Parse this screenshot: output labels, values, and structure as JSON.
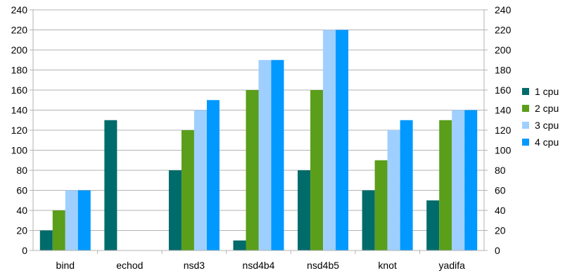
{
  "chart_data": {
    "type": "bar",
    "categories": [
      "bind",
      "echod",
      "nsd3",
      "nsd4b4",
      "nsd4b5",
      "knot",
      "yadifa"
    ],
    "series": [
      {
        "name": "1 cpu",
        "color": "#006b6b",
        "values": [
          20,
          130,
          80,
          10,
          80,
          60,
          50
        ]
      },
      {
        "name": "2 cpu",
        "color": "#5a9e1a",
        "values": [
          40,
          0,
          120,
          160,
          160,
          90,
          130
        ]
      },
      {
        "name": "3 cpu",
        "color": "#9fcfff",
        "values": [
          60,
          0,
          140,
          190,
          220,
          120,
          140
        ]
      },
      {
        "name": "4 cpu",
        "color": "#0099ff",
        "values": [
          60,
          0,
          150,
          190,
          220,
          130,
          140
        ]
      }
    ],
    "ylim": [
      0,
      240
    ],
    "y_ticks": [
      0,
      20,
      40,
      60,
      80,
      100,
      120,
      140,
      160,
      180,
      200,
      220,
      240
    ],
    "y_axis_sides": "left-and-right",
    "grid": true,
    "legend_position": "right",
    "title": "",
    "xlabel": "",
    "ylabel": ""
  }
}
